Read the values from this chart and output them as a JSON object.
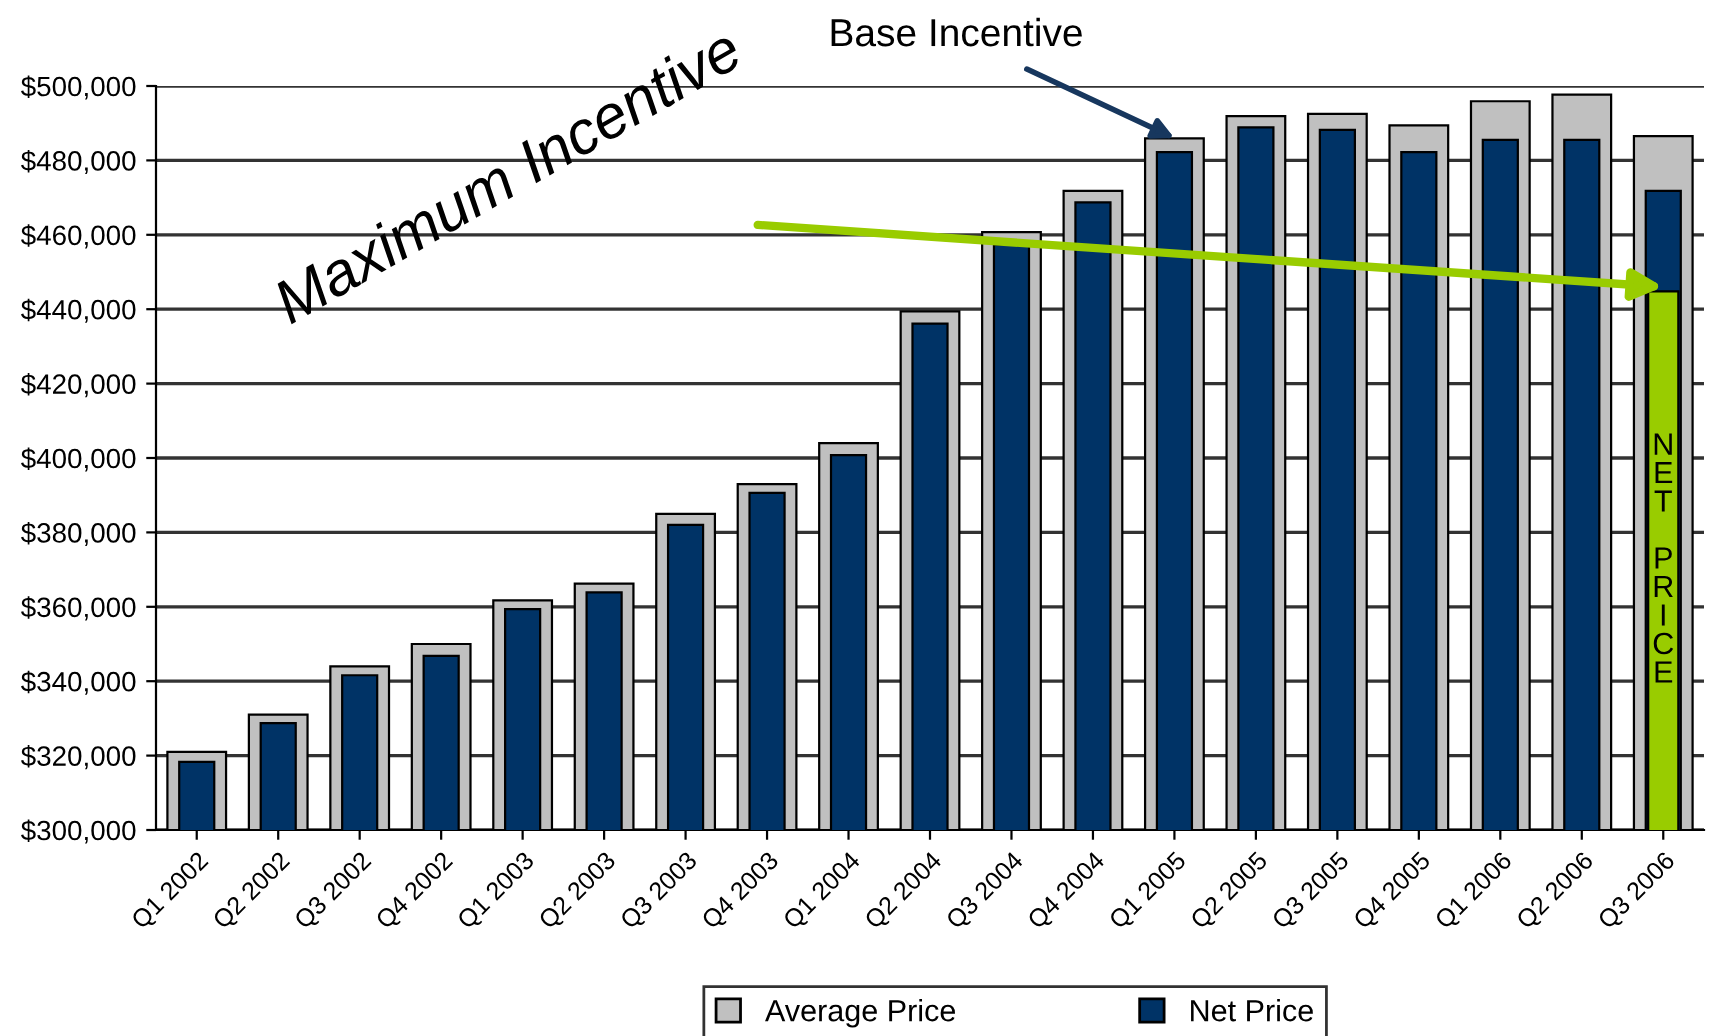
{
  "chart_data": {
    "type": "bar",
    "categories": [
      "Q1 2002",
      "Q2 2002",
      "Q3 2002",
      "Q4 2002",
      "Q1 2003",
      "Q2 2003",
      "Q3 2003",
      "Q4 2003",
      "Q1 2004",
      "Q2 2004",
      "Q3 2004",
      "Q4 2004",
      "Q1 2005",
      "Q2 2005",
      "Q3 2005",
      "Q4 2005",
      "Q1 2006",
      "Q2 2006",
      "Q3 2006"
    ],
    "series": [
      {
        "name": "Average Price",
        "color": "#c0c0c0",
        "values": [
          321000,
          331000,
          344000,
          350000,
          361700,
          366200,
          385000,
          393000,
          404000,
          439400,
          460700,
          471800,
          485900,
          491900,
          492500,
          489400,
          495900,
          497700,
          486500
        ]
      },
      {
        "name": "Net Price",
        "color": "#003366",
        "values": [
          318300,
          328700,
          341600,
          346800,
          359400,
          363900,
          382000,
          390600,
          400800,
          436100,
          457400,
          468700,
          482200,
          488900,
          488200,
          482200,
          485500,
          485500,
          471800
        ]
      },
      {
        "name": "NET PRICE",
        "color": "#99cc00",
        "values": [
          null,
          null,
          null,
          null,
          null,
          null,
          null,
          null,
          null,
          null,
          null,
          null,
          null,
          null,
          null,
          null,
          null,
          null,
          444800
        ]
      }
    ],
    "ylim": [
      300000,
      500000
    ],
    "yticks": [
      {
        "value": 300000,
        "label": "$300,000"
      },
      {
        "value": 320000,
        "label": "$320,000"
      },
      {
        "value": 340000,
        "label": "$340,000"
      },
      {
        "value": 360000,
        "label": "$360,000"
      },
      {
        "value": 380000,
        "label": "$380,000"
      },
      {
        "value": 400000,
        "label": "$400,000"
      },
      {
        "value": 420000,
        "label": "$420,000"
      },
      {
        "value": 440000,
        "label": "$440,000"
      },
      {
        "value": 460000,
        "label": "$460,000"
      },
      {
        "value": 480000,
        "label": "$480,000"
      },
      {
        "value": 500000,
        "label": "$500,000"
      }
    ],
    "grid": "y",
    "legend": "bottom",
    "annotations": [
      {
        "text": "Base Incentive",
        "x": "Q1 2005",
        "y": 486000
      },
      {
        "text": "Maximum Incentive",
        "x": "Q3 2006",
        "y": 446000
      }
    ]
  }
}
